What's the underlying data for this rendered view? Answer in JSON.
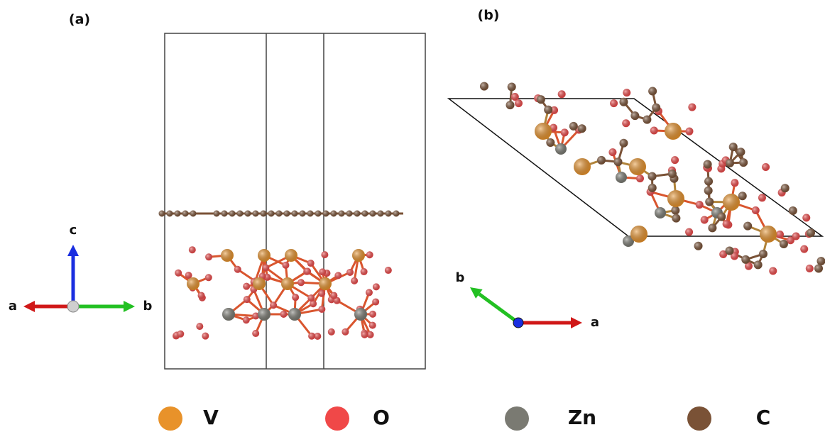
{
  "panels": [
    {
      "label": "(a)",
      "axes": [
        {
          "name": "c"
        },
        {
          "name": "a"
        },
        {
          "name": "b"
        }
      ]
    },
    {
      "label": "(b)",
      "axes": [
        {
          "name": "b"
        },
        {
          "name": "a"
        }
      ]
    }
  ],
  "legend": [
    {
      "element": "V",
      "color": "#e8922a"
    },
    {
      "element": "O",
      "color": "#f04848"
    },
    {
      "element": "Zn",
      "color": "#7a7a72"
    },
    {
      "element": "C",
      "color": "#7a5236"
    }
  ]
}
